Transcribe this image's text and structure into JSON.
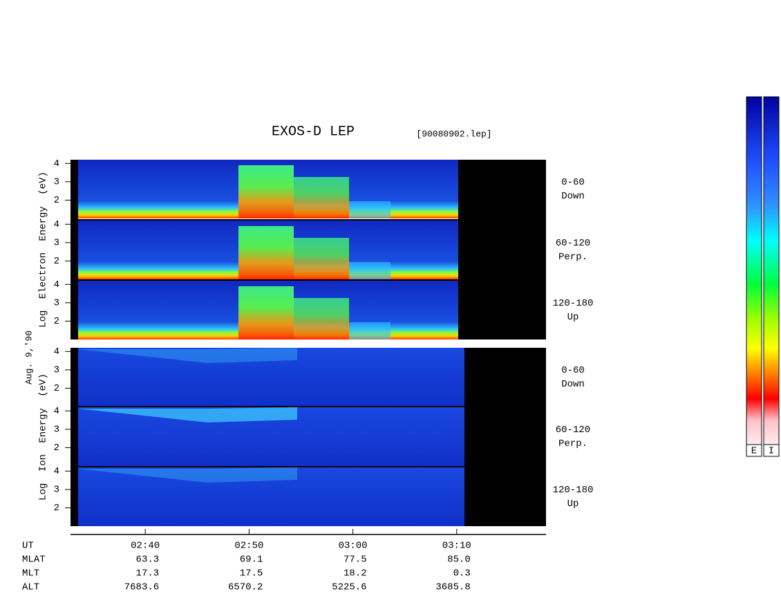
{
  "chart_data": {
    "type": "spectrogram",
    "title": "EXOS-D LEP",
    "file": "[90080902.lep]",
    "date_label": "Aug. 9,'90",
    "ylim": [
      1,
      4.2
    ],
    "yticks": [
      2,
      3,
      4
    ],
    "xlim": [
      152.8,
      198.6
    ],
    "xticks": [
      {
        "value": 160,
        "label": "02:40"
      },
      {
        "value": 170,
        "label": "02:50"
      },
      {
        "value": 180,
        "label": "03:00"
      },
      {
        "value": 190,
        "label": "03:10"
      }
    ],
    "groups": [
      {
        "ylabel": "Log Electron Energy (eV)",
        "panels": [
          {
            "angle": "0-60",
            "direction": "Down"
          },
          {
            "angle": "60-120",
            "direction": "Perp."
          },
          {
            "angle": "120-180",
            "direction": "Up"
          }
        ]
      },
      {
        "ylabel": "Log Ion Energy (eV)",
        "panels": [
          {
            "angle": "0-60",
            "direction": "Down"
          },
          {
            "angle": "60-120",
            "direction": "Perp."
          },
          {
            "angle": "120-180",
            "direction": "Up"
          }
        ]
      }
    ],
    "ut_label": "UT",
    "ephemeris": [
      {
        "label": "MLAT",
        "values": [
          "63.3",
          "69.1",
          "77.5",
          "85.0"
        ]
      },
      {
        "label": "MLT",
        "values": [
          "17.3",
          "17.5",
          "18.2",
          "0.3"
        ]
      },
      {
        "label": "ALT",
        "values": [
          "7683.6",
          "6570.2",
          "5225.6",
          "3685.8"
        ]
      }
    ],
    "colorbar_labels": [
      "E",
      "I"
    ]
  }
}
